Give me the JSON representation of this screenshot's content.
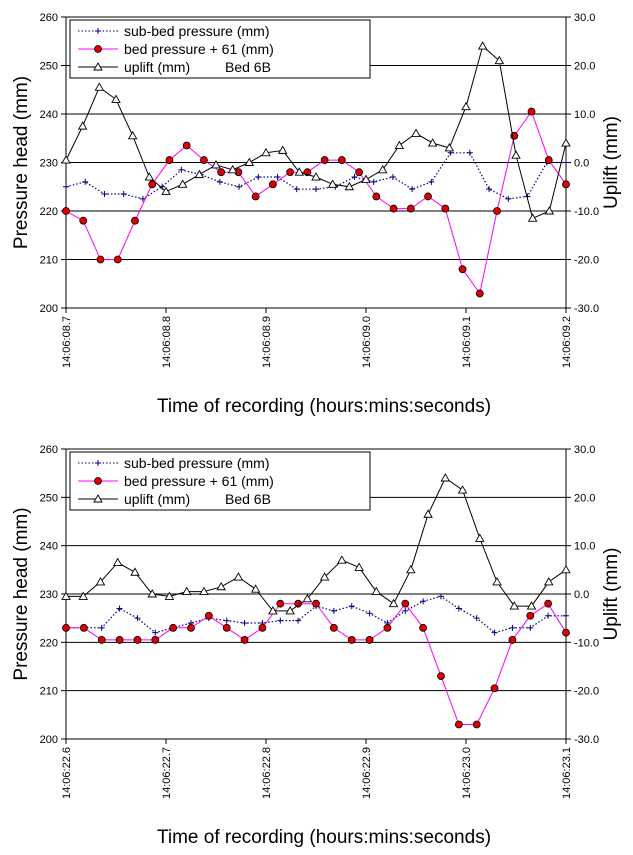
{
  "chart_data": [
    {
      "type": "line",
      "ylabel": "Pressure head (mm)",
      "y2label": "Uplift (mm)",
      "xlabel": "Time of recording (hours:mins:seconds)",
      "ylim": [
        200,
        260
      ],
      "y2lim": [
        -30,
        30
      ],
      "yticks": [
        "200",
        "210",
        "220",
        "230",
        "240",
        "250",
        "260"
      ],
      "y2ticks": [
        "-30.0",
        "-20.0",
        "-10.0",
        "0.0",
        "10.0",
        "20.0",
        "30.0"
      ],
      "xticks": [
        "14:06:08.7",
        "14:06:08.8",
        "14:06:08.9",
        "14:06:09.0",
        "14:06:09.1",
        "14:06:09.2"
      ],
      "grid": "horizontal",
      "legend": "top-left",
      "legend_note": "Bed 6B",
      "series": [
        {
          "name": "sub-bed pressure (mm)",
          "color": "#000080",
          "marker": "plus",
          "style": "dotted",
          "axis": "left",
          "values": [
            225,
            226,
            223.5,
            223.5,
            222.5,
            225,
            228.5,
            227.5,
            226,
            225,
            227,
            227,
            224.5,
            224.5,
            225,
            227,
            226,
            227,
            224.5,
            226,
            232,
            232,
            224.5,
            222.5,
            223,
            230,
            230
          ]
        },
        {
          "name": "bed pressure + 61 (mm)",
          "color": "#ff00ff",
          "marker": "circle",
          "style": "solid",
          "axis": "left",
          "values": [
            220,
            218,
            210,
            210,
            218,
            225.5,
            230.5,
            233.5,
            230.5,
            228,
            228,
            223,
            225.5,
            228,
            228,
            230.5,
            230.5,
            228,
            223,
            220.5,
            220.5,
            223,
            220.5,
            208,
            203,
            220,
            235.5,
            240.5,
            230.5,
            225.5
          ]
        },
        {
          "name": "uplift (mm)",
          "color": "#000000",
          "marker": "triangle",
          "style": "solid",
          "axis": "right",
          "values": [
            0.5,
            7.5,
            15.5,
            13,
            5.5,
            -3,
            -6,
            -4.5,
            -2.5,
            -0.5,
            -1.5,
            0,
            2,
            2.5,
            -2,
            -3,
            -4.5,
            -5,
            -3.5,
            -1.5,
            3.5,
            6,
            4,
            3,
            11.5,
            24,
            21,
            1.5,
            -11.5,
            -10,
            4
          ]
        }
      ]
    },
    {
      "type": "line",
      "ylabel": "Pressure head (mm)",
      "y2label": "Uplift (mm)",
      "xlabel": "Time of recording (hours:mins:seconds)",
      "ylim": [
        200,
        260
      ],
      "y2lim": [
        -30,
        30
      ],
      "yticks": [
        "200",
        "210",
        "220",
        "230",
        "240",
        "250",
        "260"
      ],
      "y2ticks": [
        "-30.0",
        "-20.0",
        "-10.0",
        "0.0",
        "10.0",
        "20.0",
        "30.0"
      ],
      "xticks": [
        "14:06:22.6",
        "14:06:22.7",
        "14:06:22.8",
        "14:06:22.9",
        "14:06:23.0",
        "14:06:23.1"
      ],
      "grid": "horizontal",
      "legend": "top-left",
      "legend_note": "Bed 6B",
      "series": [
        {
          "name": "sub-bed pressure (mm)",
          "color": "#000080",
          "marker": "plus",
          "style": "dotted",
          "axis": "left",
          "values": [
            223,
            223,
            223,
            227,
            225,
            222,
            223,
            224,
            225,
            224.5,
            224,
            224,
            224.5,
            224.5,
            227.5,
            226.5,
            227.5,
            226,
            224,
            226.5,
            228.5,
            229.5,
            227,
            225,
            222,
            223,
            223,
            225.5,
            225.5
          ]
        },
        {
          "name": "bed pressure + 61 (mm)",
          "color": "#ff00ff",
          "marker": "circle",
          "style": "solid",
          "axis": "left",
          "values": [
            223,
            223,
            220.5,
            220.5,
            220.5,
            220.5,
            223,
            223,
            225.5,
            223,
            220.5,
            223,
            228,
            228,
            228,
            223,
            220.5,
            220.5,
            223,
            228,
            223,
            213,
            203,
            203,
            210.5,
            220.5,
            225.5,
            228,
            222
          ]
        },
        {
          "name": "uplift (mm)",
          "color": "#000000",
          "marker": "triangle",
          "style": "solid",
          "axis": "right",
          "values": [
            -0.5,
            -0.5,
            2.5,
            6.5,
            4.5,
            0,
            -0.5,
            0.5,
            0.5,
            1.5,
            3.5,
            1,
            -3.5,
            -3.5,
            -1,
            3.5,
            7,
            5.5,
            0.5,
            -2,
            5,
            16.5,
            24,
            21.5,
            11.5,
            2.5,
            -2.5,
            -2.5,
            2.5,
            5
          ]
        }
      ]
    }
  ]
}
